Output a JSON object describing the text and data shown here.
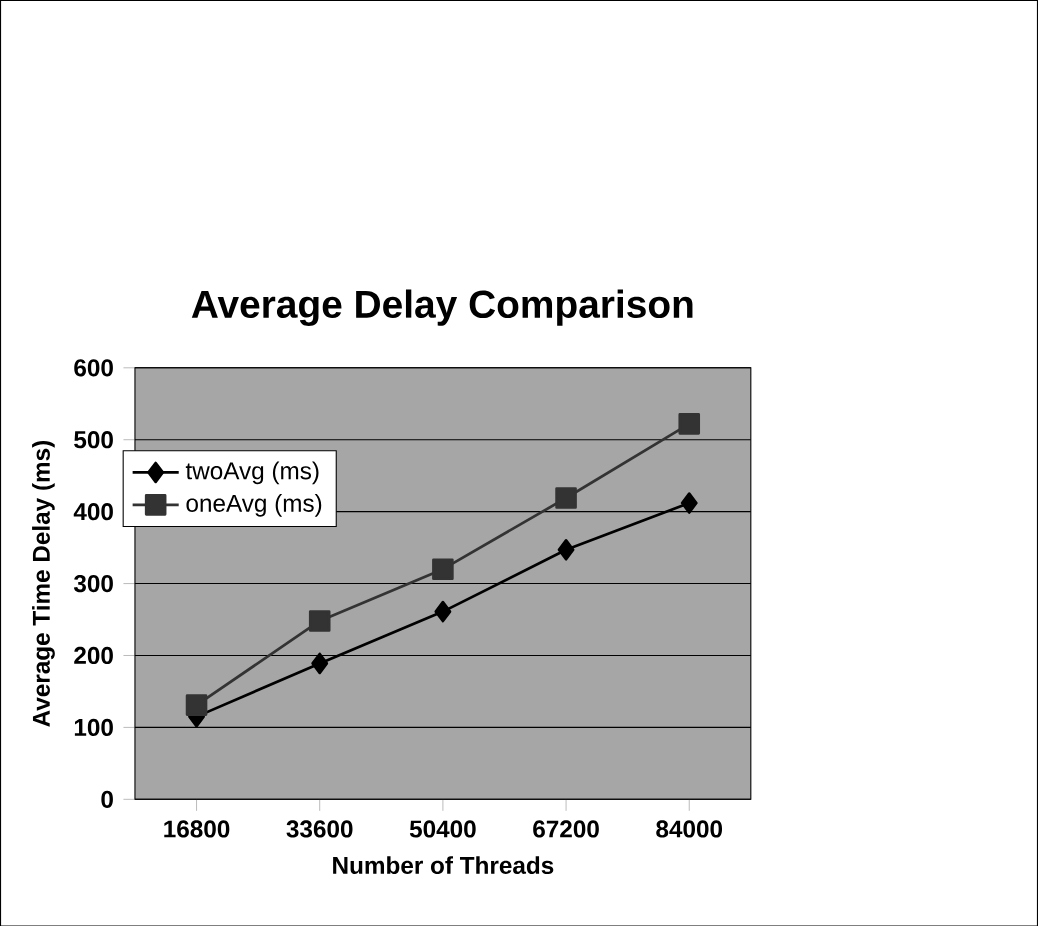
{
  "chart_data": {
    "type": "line",
    "title": "Average Delay Comparison",
    "xlabel": "Number of Threads",
    "ylabel": "Average Time Delay (ms)",
    "categories": [
      "16800",
      "33600",
      "50400",
      "67200",
      "84000"
    ],
    "series": [
      {
        "name": "twoAvg (ms)",
        "color": "#000000",
        "marker": "diamond",
        "values": [
          115,
          189,
          261,
          347,
          412
        ]
      },
      {
        "name": "oneAvg (ms)",
        "color": "#333333",
        "marker": "square",
        "values": [
          131,
          248,
          320,
          419,
          522
        ]
      }
    ],
    "ylim": [
      0,
      600
    ],
    "yticks": [
      0,
      100,
      200,
      300,
      400,
      500,
      600
    ],
    "grid": "y",
    "legend": "left",
    "line_style": "solid"
  }
}
